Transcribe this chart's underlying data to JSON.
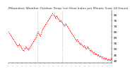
{
  "title": "Milwaukee Weather Outdoor Temp (vs) Heat Index per Minute (Last 24 Hours)",
  "background_color": "#ffffff",
  "plot_color": "#ff0000",
  "vline_color": "#b0b0b0",
  "vline_positions": [
    0.28,
    0.52
  ],
  "ylim": [
    38,
    84
  ],
  "yticks": [
    40,
    45,
    50,
    55,
    60,
    65,
    70,
    75,
    80
  ],
  "title_fontsize": 3.2,
  "tick_fontsize": 3.0,
  "num_xticks": 24,
  "y": [
    65,
    64,
    63,
    62,
    61,
    60,
    59,
    58,
    57,
    56,
    55,
    54,
    53,
    52,
    53,
    54,
    53,
    52,
    51,
    50,
    49,
    48,
    50,
    51,
    52,
    51,
    50,
    49,
    50,
    51,
    52,
    53,
    54,
    55,
    56,
    57,
    58,
    59,
    60,
    62,
    64,
    65,
    63,
    62,
    61,
    63,
    65,
    67,
    68,
    69,
    70,
    71,
    72,
    73,
    74,
    75,
    76,
    77,
    78,
    79,
    80,
    81,
    80,
    79,
    78,
    77,
    79,
    78,
    77,
    76,
    75,
    74,
    75,
    74,
    73,
    72,
    71,
    70,
    71,
    72,
    71,
    70,
    69,
    68,
    67,
    66,
    65,
    64,
    63,
    62,
    61,
    60,
    59,
    58,
    57,
    58,
    57,
    56,
    55,
    54,
    55,
    54,
    53,
    52,
    53,
    52,
    51,
    50,
    51,
    52,
    51,
    50,
    49,
    48,
    49,
    48,
    47,
    46,
    47,
    46,
    45,
    46,
    45,
    44,
    45,
    44,
    43,
    44,
    43,
    42,
    43,
    42,
    41,
    42,
    41,
    42,
    41,
    40,
    41,
    40,
    41,
    40,
    41,
    42
  ]
}
